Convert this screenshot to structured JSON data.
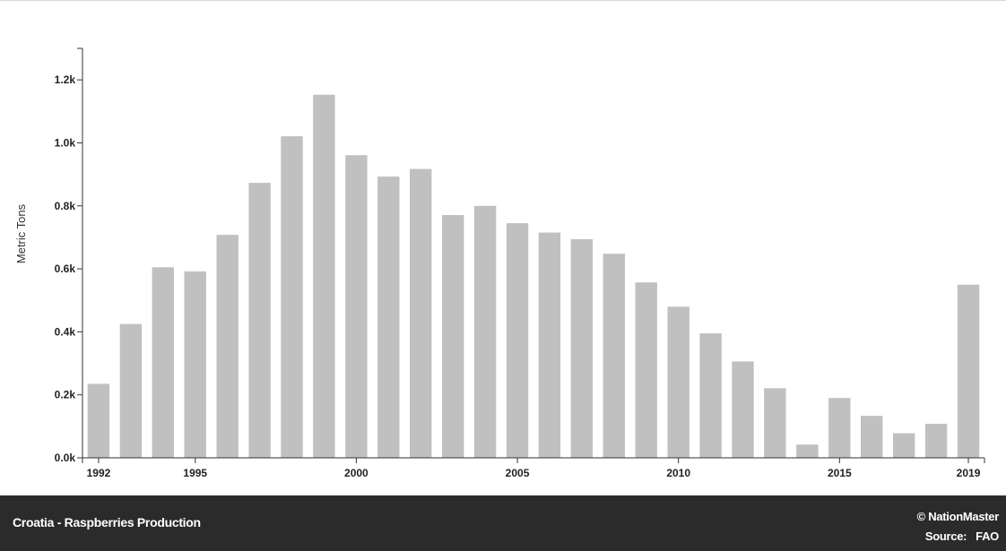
{
  "chart_data": {
    "type": "bar",
    "categories": [
      "1992",
      "1993",
      "1994",
      "1995",
      "1996",
      "1997",
      "1998",
      "1999",
      "2000",
      "2001",
      "2002",
      "2003",
      "2004",
      "2005",
      "2006",
      "2007",
      "2008",
      "2009",
      "2010",
      "2011",
      "2012",
      "2013",
      "2014",
      "2015",
      "2016",
      "2017",
      "2018",
      "2019"
    ],
    "values": [
      235,
      425,
      605,
      592,
      708,
      873,
      1021,
      1153,
      961,
      893,
      917,
      771,
      800,
      745,
      715,
      694,
      648,
      557,
      480,
      395,
      306,
      221,
      42,
      190,
      133,
      78,
      108,
      550
    ],
    "x_tick_labels": [
      "1992",
      "1995",
      "2000",
      "2005",
      "2010",
      "2015",
      "2019"
    ],
    "y_ticks": [
      {
        "value": 0,
        "label": "0.0k"
      },
      {
        "value": 200,
        "label": "0.2k"
      },
      {
        "value": 400,
        "label": "0.4k"
      },
      {
        "value": 600,
        "label": "0.6k"
      },
      {
        "value": 800,
        "label": "0.8k"
      },
      {
        "value": 1000,
        "label": "1.0k"
      },
      {
        "value": 1200,
        "label": "1.2k"
      }
    ],
    "ylim": [
      0,
      1300
    ],
    "ylabel": "Metric Tons",
    "xlabel": "",
    "bar_color": "#c0c0c0",
    "grid": false
  },
  "footer": {
    "title": "Croatia - Raspberries Production",
    "brand": "© NationMaster",
    "source_label": "Source:",
    "source_value": "FAO"
  }
}
